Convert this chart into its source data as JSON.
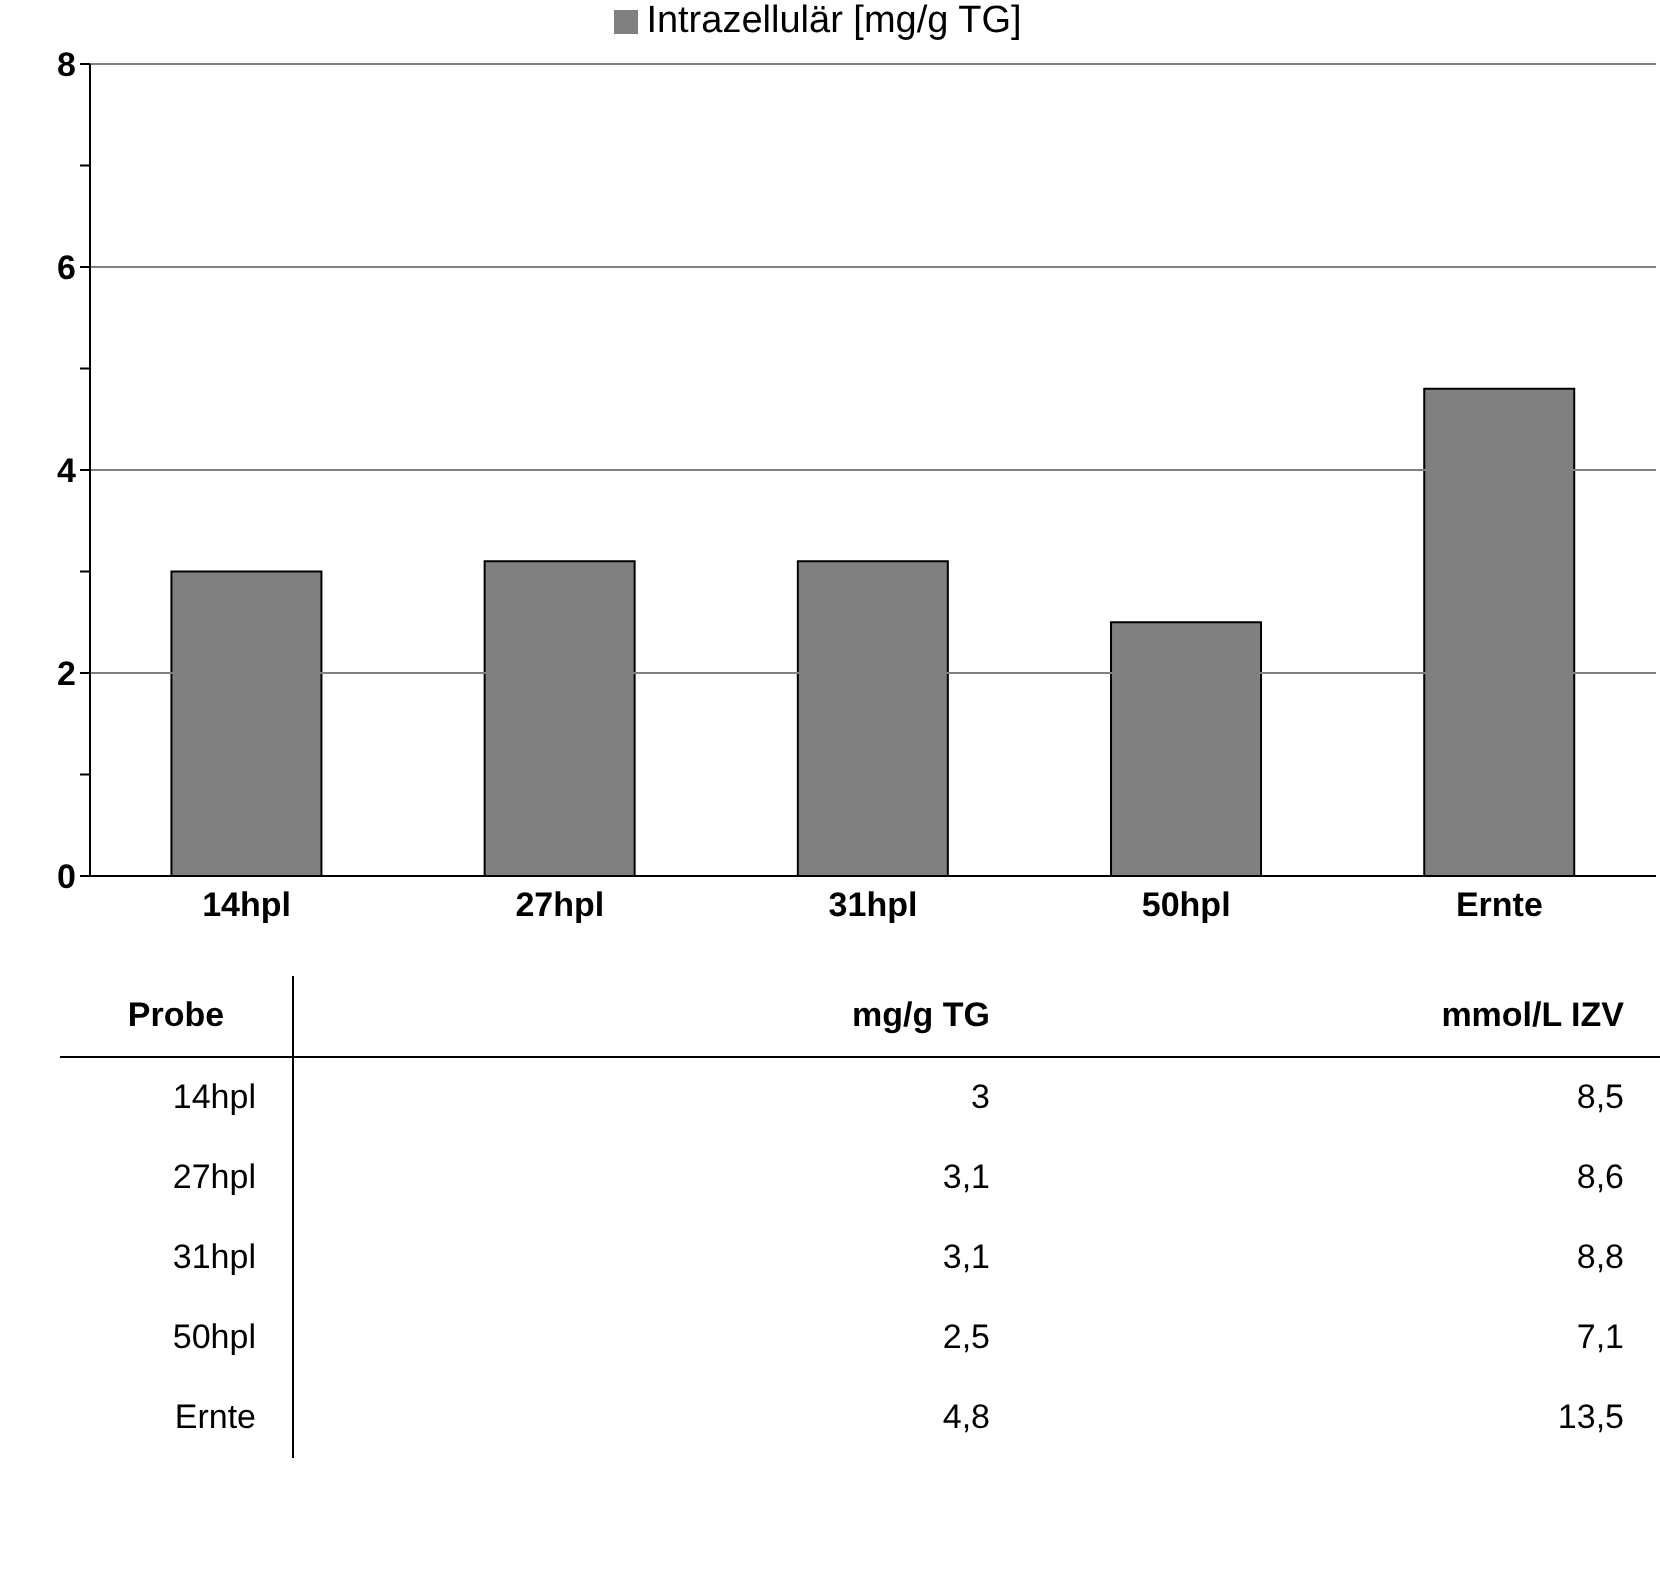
{
  "chart_data": [
    {
      "type": "bar",
      "categories": [
        "14hpl",
        "27hpl",
        "31hpl",
        "50hpl",
        "Ernte"
      ],
      "series": [
        {
          "name": "Intrazellulär [mg/g TG]",
          "color": "#808080",
          "values": [
            3,
            3.1,
            3.1,
            2.5,
            4.8
          ]
        }
      ],
      "ylim": [
        0,
        8
      ],
      "yticks": [
        0,
        {
          "value": 1,
          "label": null
        },
        2,
        {
          "value": 3,
          "label": null
        },
        4,
        {
          "value": 5,
          "label": null
        },
        6,
        {
          "value": 7,
          "label": null
        },
        8
      ],
      "grid": "y",
      "legend": "top"
    },
    {
      "type": "other",
      "annotations": [
        "Probe",
        "mg/g TG",
        "mmol/L IZV",
        "14hpl",
        "3",
        "8,5",
        "27hpl",
        "3,1",
        "8,6",
        "31hpl",
        "3,1",
        "8,8",
        "50hpl",
        "2,5",
        "7,1",
        "Ernte",
        "4,8",
        "13,5"
      ]
    }
  ]
}
